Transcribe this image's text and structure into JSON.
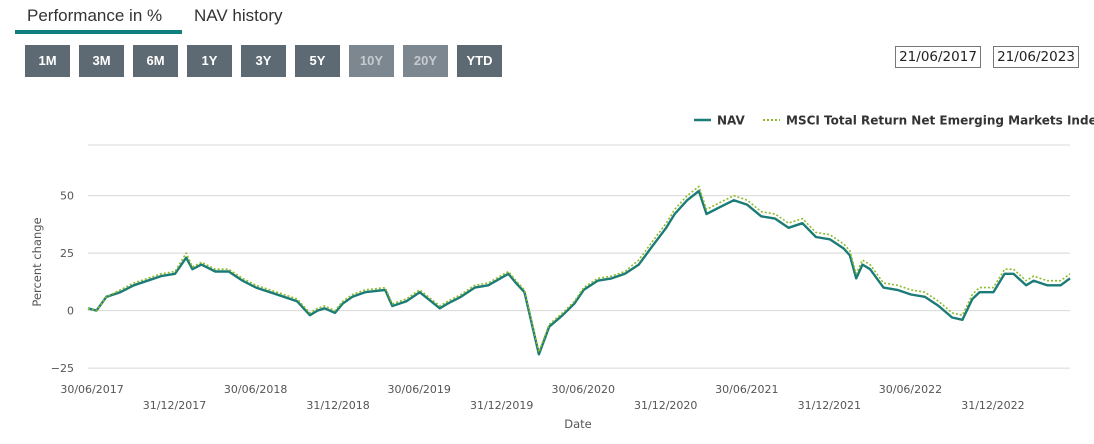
{
  "tabs": {
    "performance": "Performance in %",
    "nav_history": "NAV history"
  },
  "range_buttons": [
    {
      "label": "1M",
      "enabled": true
    },
    {
      "label": "3M",
      "enabled": true
    },
    {
      "label": "6M",
      "enabled": true
    },
    {
      "label": "1Y",
      "enabled": true
    },
    {
      "label": "3Y",
      "enabled": true
    },
    {
      "label": "5Y",
      "enabled": true
    },
    {
      "label": "10Y",
      "enabled": false
    },
    {
      "label": "20Y",
      "enabled": false
    },
    {
      "label": "YTD",
      "enabled": true
    }
  ],
  "date_range": {
    "from": "21/06/2017",
    "to": "21/06/2023"
  },
  "colors": {
    "accent": "#0f7e80",
    "nav": "#1b7b76",
    "index": "#8dbb2a",
    "button": "#5e6a73"
  },
  "chart_data": {
    "type": "line",
    "xlabel": "Date",
    "ylabel": "Percent change",
    "ylim": [
      -28,
      72
    ],
    "xlim": [
      "2017-06-21",
      "2023-06-21"
    ],
    "grid": true,
    "legend_position": "top-right",
    "y_ticks": [
      -25,
      0,
      25,
      50
    ],
    "y_tick_labels": [
      "−25",
      "0",
      "25",
      "50"
    ],
    "x_ticks": [
      "2017-06-30",
      "2017-12-31",
      "2018-06-30",
      "2018-12-31",
      "2019-06-30",
      "2019-12-31",
      "2020-06-30",
      "2020-12-31",
      "2021-06-30",
      "2021-12-31",
      "2022-06-30",
      "2022-12-31"
    ],
    "x_tick_labels": [
      "30/06/2017",
      "31/12/2017",
      "30/06/2018",
      "31/12/2018",
      "30/06/2019",
      "31/12/2019",
      "30/06/2020",
      "31/12/2020",
      "30/06/2021",
      "31/12/2021",
      "30/06/2022",
      "31/12/2022"
    ],
    "series": [
      {
        "name": "NAV",
        "x": [
          "2017-06-21",
          "2017-07-10",
          "2017-08-01",
          "2017-09-01",
          "2017-10-01",
          "2017-11-01",
          "2017-12-01",
          "2018-01-01",
          "2018-01-26",
          "2018-02-09",
          "2018-03-01",
          "2018-04-01",
          "2018-05-01",
          "2018-06-01",
          "2018-07-01",
          "2018-08-01",
          "2018-09-01",
          "2018-10-01",
          "2018-10-29",
          "2018-11-15",
          "2018-12-01",
          "2018-12-24",
          "2019-01-10",
          "2019-02-01",
          "2019-03-01",
          "2019-04-15",
          "2019-05-01",
          "2019-06-01",
          "2019-07-01",
          "2019-08-15",
          "2019-09-01",
          "2019-10-01",
          "2019-11-01",
          "2019-12-01",
          "2020-01-15",
          "2020-02-01",
          "2020-02-20",
          "2020-03-23",
          "2020-04-15",
          "2020-05-15",
          "2020-06-10",
          "2020-07-01",
          "2020-08-01",
          "2020-09-01",
          "2020-10-01",
          "2020-11-01",
          "2020-12-01",
          "2021-01-01",
          "2021-01-20",
          "2021-02-17",
          "2021-03-15",
          "2021-04-01",
          "2021-05-01",
          "2021-06-01",
          "2021-07-01",
          "2021-08-01",
          "2021-09-01",
          "2021-10-01",
          "2021-11-01",
          "2021-12-01",
          "2022-01-01",
          "2022-02-01",
          "2022-02-15",
          "2022-03-01",
          "2022-03-15",
          "2022-04-01",
          "2022-05-01",
          "2022-06-01",
          "2022-07-01",
          "2022-08-01",
          "2022-09-01",
          "2022-10-01",
          "2022-10-24",
          "2022-11-15",
          "2022-12-01",
          "2023-01-01",
          "2023-01-26",
          "2023-02-15",
          "2023-03-15",
          "2023-04-01",
          "2023-05-01",
          "2023-05-31",
          "2023-06-21"
        ],
        "y": [
          1,
          0,
          6,
          8,
          11,
          13,
          15,
          16,
          23,
          18,
          20,
          17,
          17,
          13,
          10,
          8,
          6,
          4,
          -2,
          0,
          1,
          -1,
          3,
          6,
          8,
          9,
          2,
          4,
          8,
          1,
          3,
          6,
          10,
          11,
          16,
          12,
          8,
          -19,
          -7,
          -2,
          3,
          9,
          13,
          14,
          16,
          20,
          28,
          36,
          42,
          48,
          52,
          42,
          45,
          48,
          46,
          41,
          40,
          36,
          38,
          32,
          31,
          27,
          24,
          14,
          20,
          18,
          10,
          9,
          7,
          6,
          2,
          -3,
          -4,
          5,
          8,
          8,
          16,
          16,
          11,
          13,
          11,
          11,
          14
        ]
      },
      {
        "name": "MSCI Total Return Net Emerging Markets Index",
        "x": [
          "2017-06-21",
          "2017-07-10",
          "2017-08-01",
          "2017-09-01",
          "2017-10-01",
          "2017-11-01",
          "2017-12-01",
          "2018-01-01",
          "2018-01-26",
          "2018-02-09",
          "2018-03-01",
          "2018-04-01",
          "2018-05-01",
          "2018-06-01",
          "2018-07-01",
          "2018-08-01",
          "2018-09-01",
          "2018-10-01",
          "2018-10-29",
          "2018-11-15",
          "2018-12-01",
          "2018-12-24",
          "2019-01-10",
          "2019-02-01",
          "2019-03-01",
          "2019-04-15",
          "2019-05-01",
          "2019-06-01",
          "2019-07-01",
          "2019-08-15",
          "2019-09-01",
          "2019-10-01",
          "2019-11-01",
          "2019-12-01",
          "2020-01-15",
          "2020-02-01",
          "2020-02-20",
          "2020-03-23",
          "2020-04-15",
          "2020-05-15",
          "2020-06-10",
          "2020-07-01",
          "2020-08-01",
          "2020-09-01",
          "2020-10-01",
          "2020-11-01",
          "2020-12-01",
          "2021-01-01",
          "2021-01-20",
          "2021-02-17",
          "2021-03-15",
          "2021-04-01",
          "2021-05-01",
          "2021-06-01",
          "2021-07-01",
          "2021-08-01",
          "2021-09-01",
          "2021-10-01",
          "2021-11-01",
          "2021-12-01",
          "2022-01-01",
          "2022-02-01",
          "2022-02-15",
          "2022-03-01",
          "2022-03-15",
          "2022-04-01",
          "2022-05-01",
          "2022-06-01",
          "2022-07-01",
          "2022-08-01",
          "2022-09-01",
          "2022-10-01",
          "2022-10-24",
          "2022-11-15",
          "2022-12-01",
          "2023-01-01",
          "2023-01-26",
          "2023-02-15",
          "2023-03-15",
          "2023-04-01",
          "2023-05-01",
          "2023-05-31",
          "2023-06-21"
        ],
        "y": [
          1,
          0,
          6,
          9,
          12,
          14,
          16,
          17,
          25,
          19,
          21,
          18,
          18,
          14,
          11,
          9,
          7,
          5,
          -1,
          1,
          2,
          0,
          4,
          7,
          9,
          10,
          3,
          5,
          9,
          2,
          4,
          7,
          11,
          12,
          17,
          13,
          9,
          -18,
          -6,
          -1,
          4,
          10,
          14,
          15,
          17,
          22,
          30,
          38,
          44,
          50,
          54,
          44,
          47,
          50,
          48,
          43,
          42,
          38,
          40,
          34,
          33,
          29,
          26,
          16,
          22,
          20,
          12,
          11,
          9,
          8,
          4,
          -1,
          -2,
          7,
          10,
          10,
          18,
          18,
          13,
          15,
          13,
          13,
          16
        ]
      }
    ]
  }
}
